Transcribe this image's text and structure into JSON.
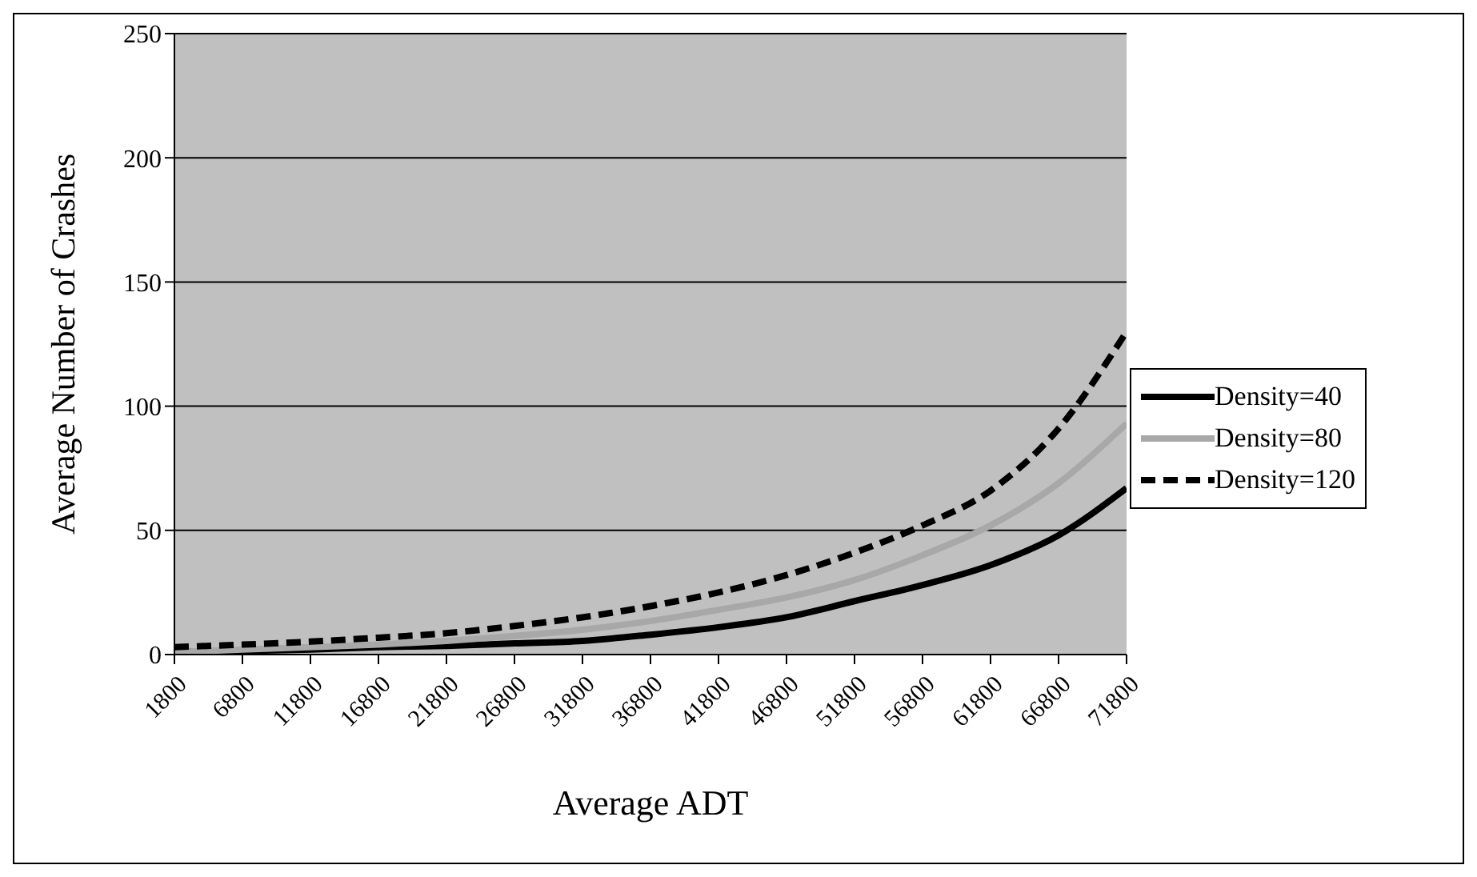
{
  "chart_data": {
    "type": "line",
    "xlabel": "Average ADT",
    "ylabel": "Average Number of Crashes",
    "x": [
      1800,
      6800,
      11800,
      16800,
      21800,
      26800,
      31800,
      36800,
      41800,
      46800,
      51800,
      56800,
      61800,
      66800,
      71800
    ],
    "xlim": [
      1800,
      71800
    ],
    "xticks": [
      1800,
      6800,
      11800,
      16800,
      21800,
      26800,
      31800,
      36800,
      41800,
      46800,
      51800,
      56800,
      61800,
      66800,
      71800
    ],
    "ylim": [
      0,
      250
    ],
    "yticks": [
      0,
      50,
      100,
      150,
      200,
      250
    ],
    "grid": "y",
    "legend": "right",
    "marker": "none",
    "series": [
      {
        "name": "Density=40",
        "color": "#000000",
        "line_style": "solid",
        "values": [
          1,
          1.5,
          2,
          3,
          3.5,
          4.5,
          5.5,
          8,
          11,
          15,
          21.5,
          28,
          36,
          48,
          67
        ]
      },
      {
        "name": "Density=80",
        "color": "#a8a8a8",
        "line_style": "solid",
        "values": [
          1,
          2,
          3,
          4,
          5.5,
          7.5,
          10,
          13.5,
          18,
          23,
          30,
          40,
          52,
          69,
          93
        ]
      },
      {
        "name": "Density=120",
        "color": "#000000",
        "line_style": "dashed",
        "values": [
          3,
          4,
          5.2,
          6.8,
          8.6,
          11.5,
          15,
          19.5,
          25,
          32,
          41,
          52,
          66,
          91,
          130
        ]
      }
    ]
  }
}
